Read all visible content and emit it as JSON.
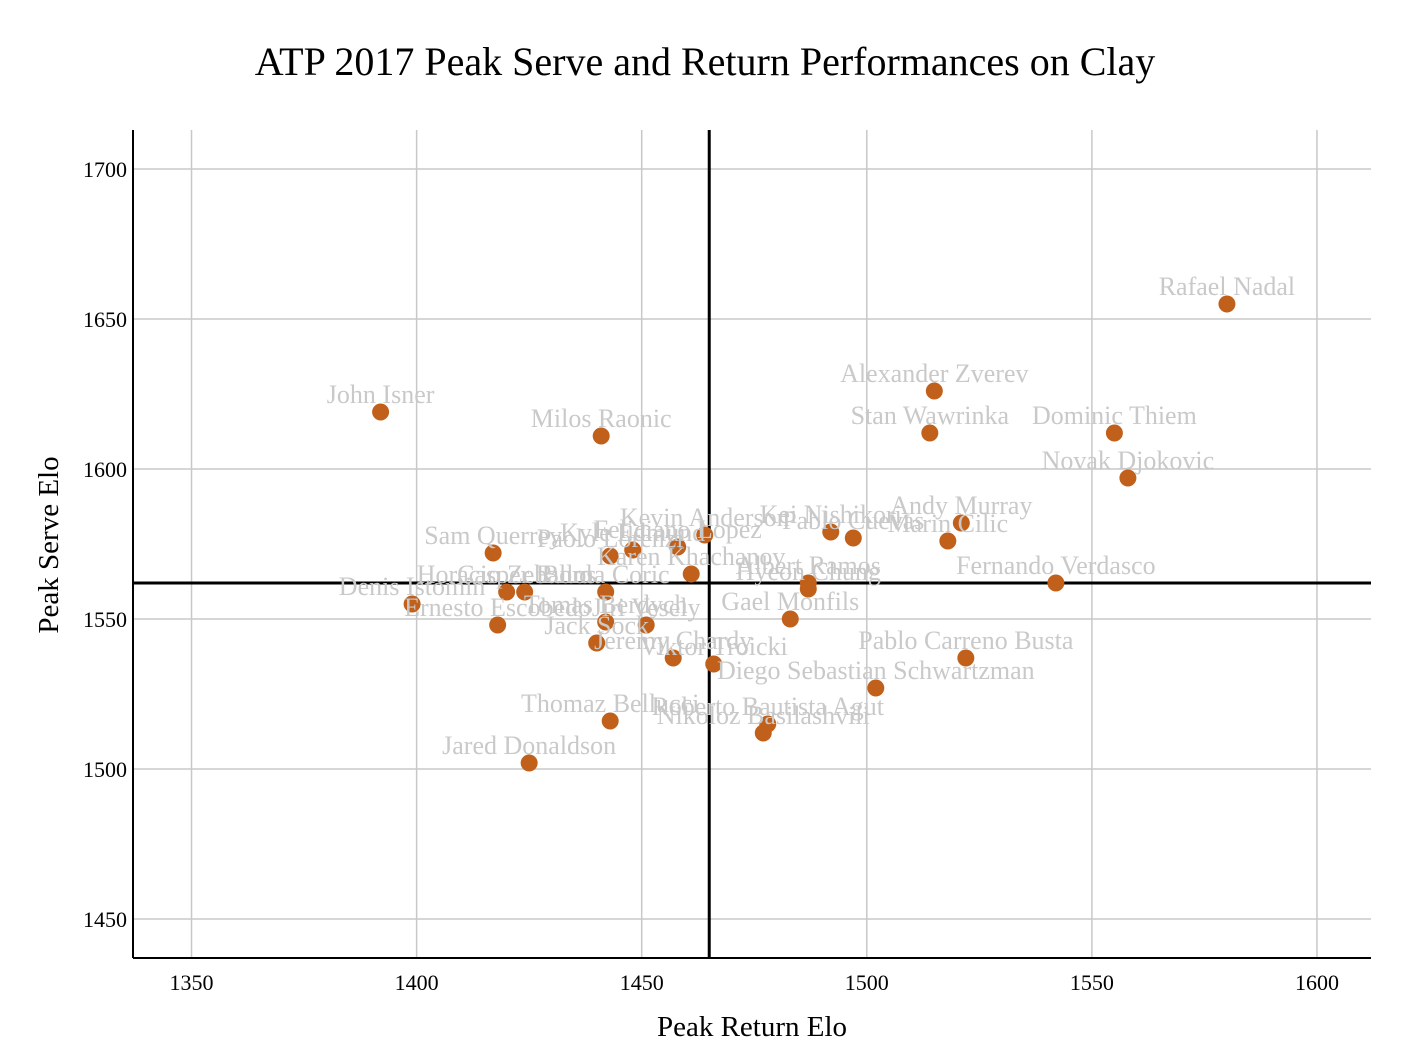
{
  "chart_data": {
    "type": "scatter",
    "title": "ATP 2017 Peak Serve and Return Performances on Clay",
    "xlabel": "Peak Return Elo",
    "ylabel": "Peak Serve Elo",
    "xlim": [
      1337,
      1612
    ],
    "ylim": [
      1437,
      1713
    ],
    "xticks": [
      1350,
      1400,
      1450,
      1500,
      1550,
      1600
    ],
    "yticks": [
      1450,
      1500,
      1550,
      1600,
      1650,
      1700
    ],
    "grid": true,
    "reference_lines": {
      "x": 1465,
      "y": 1562
    },
    "point_color": "#c0601a",
    "label_color": "#c9c9c9",
    "points": [
      {
        "name": "Rafael Nadal",
        "x": 1580,
        "y": 1655
      },
      {
        "name": "Alexander Zverev",
        "x": 1515,
        "y": 1626
      },
      {
        "name": "Stan Wawrinka",
        "x": 1514,
        "y": 1612
      },
      {
        "name": "Dominic Thiem",
        "x": 1555,
        "y": 1612
      },
      {
        "name": "Novak Djokovic",
        "x": 1558,
        "y": 1597
      },
      {
        "name": "John Isner",
        "x": 1392,
        "y": 1619
      },
      {
        "name": "Milos Raonic",
        "x": 1441,
        "y": 1611
      },
      {
        "name": "Andy Murray",
        "x": 1521,
        "y": 1582
      },
      {
        "name": "Marin Cilic",
        "x": 1518,
        "y": 1576
      },
      {
        "name": "Kei Nishikori",
        "x": 1492,
        "y": 1579
      },
      {
        "name": "Pablo Cuevas",
        "x": 1497,
        "y": 1577
      },
      {
        "name": "Kevin Anderson",
        "x": 1464,
        "y": 1578
      },
      {
        "name": "Feliciano Lopez",
        "x": 1458,
        "y": 1574
      },
      {
        "name": "Kyle Edmund",
        "x": 1448,
        "y": 1573
      },
      {
        "name": "Paolo Lorenzi",
        "x": 1443,
        "y": 1571
      },
      {
        "name": "Sam Querrey",
        "x": 1417,
        "y": 1572
      },
      {
        "name": "Karen Khachanov",
        "x": 1461,
        "y": 1565
      },
      {
        "name": "Albert Ramos",
        "x": 1487,
        "y": 1562
      },
      {
        "name": "Hyeon Chung",
        "x": 1487,
        "y": 1560
      },
      {
        "name": "Fernando Verdasco",
        "x": 1542,
        "y": 1562
      },
      {
        "name": "Denis Istomin",
        "x": 1399,
        "y": 1555
      },
      {
        "name": "Horacio Zeballos",
        "x": 1420,
        "y": 1559
      },
      {
        "name": "Casper Ruud",
        "x": 1424,
        "y": 1559
      },
      {
        "name": "Borna Coric",
        "x": 1442,
        "y": 1559
      },
      {
        "name": "Ernesto Escobedo",
        "x": 1418,
        "y": 1548
      },
      {
        "name": "Tomas Berdych",
        "x": 1442,
        "y": 1549
      },
      {
        "name": "Jiri Vesely",
        "x": 1451,
        "y": 1548
      },
      {
        "name": "Gael Monfils",
        "x": 1483,
        "y": 1550
      },
      {
        "name": "Jack Sock",
        "x": 1440,
        "y": 1542
      },
      {
        "name": "Jeremy Chardy",
        "x": 1457,
        "y": 1537
      },
      {
        "name": "Viktor Troicki",
        "x": 1466,
        "y": 1535
      },
      {
        "name": "Pablo Carreno Busta",
        "x": 1522,
        "y": 1537
      },
      {
        "name": "Diego Sebastian Schwartzman",
        "x": 1502,
        "y": 1527
      },
      {
        "name": "Thomaz Bellucci",
        "x": 1443,
        "y": 1516
      },
      {
        "name": "Roberto Bautista Agut",
        "x": 1478,
        "y": 1515
      },
      {
        "name": "Nikoloz Basilashvili",
        "x": 1477,
        "y": 1512
      },
      {
        "name": "Jared Donaldson",
        "x": 1425,
        "y": 1502
      }
    ]
  }
}
